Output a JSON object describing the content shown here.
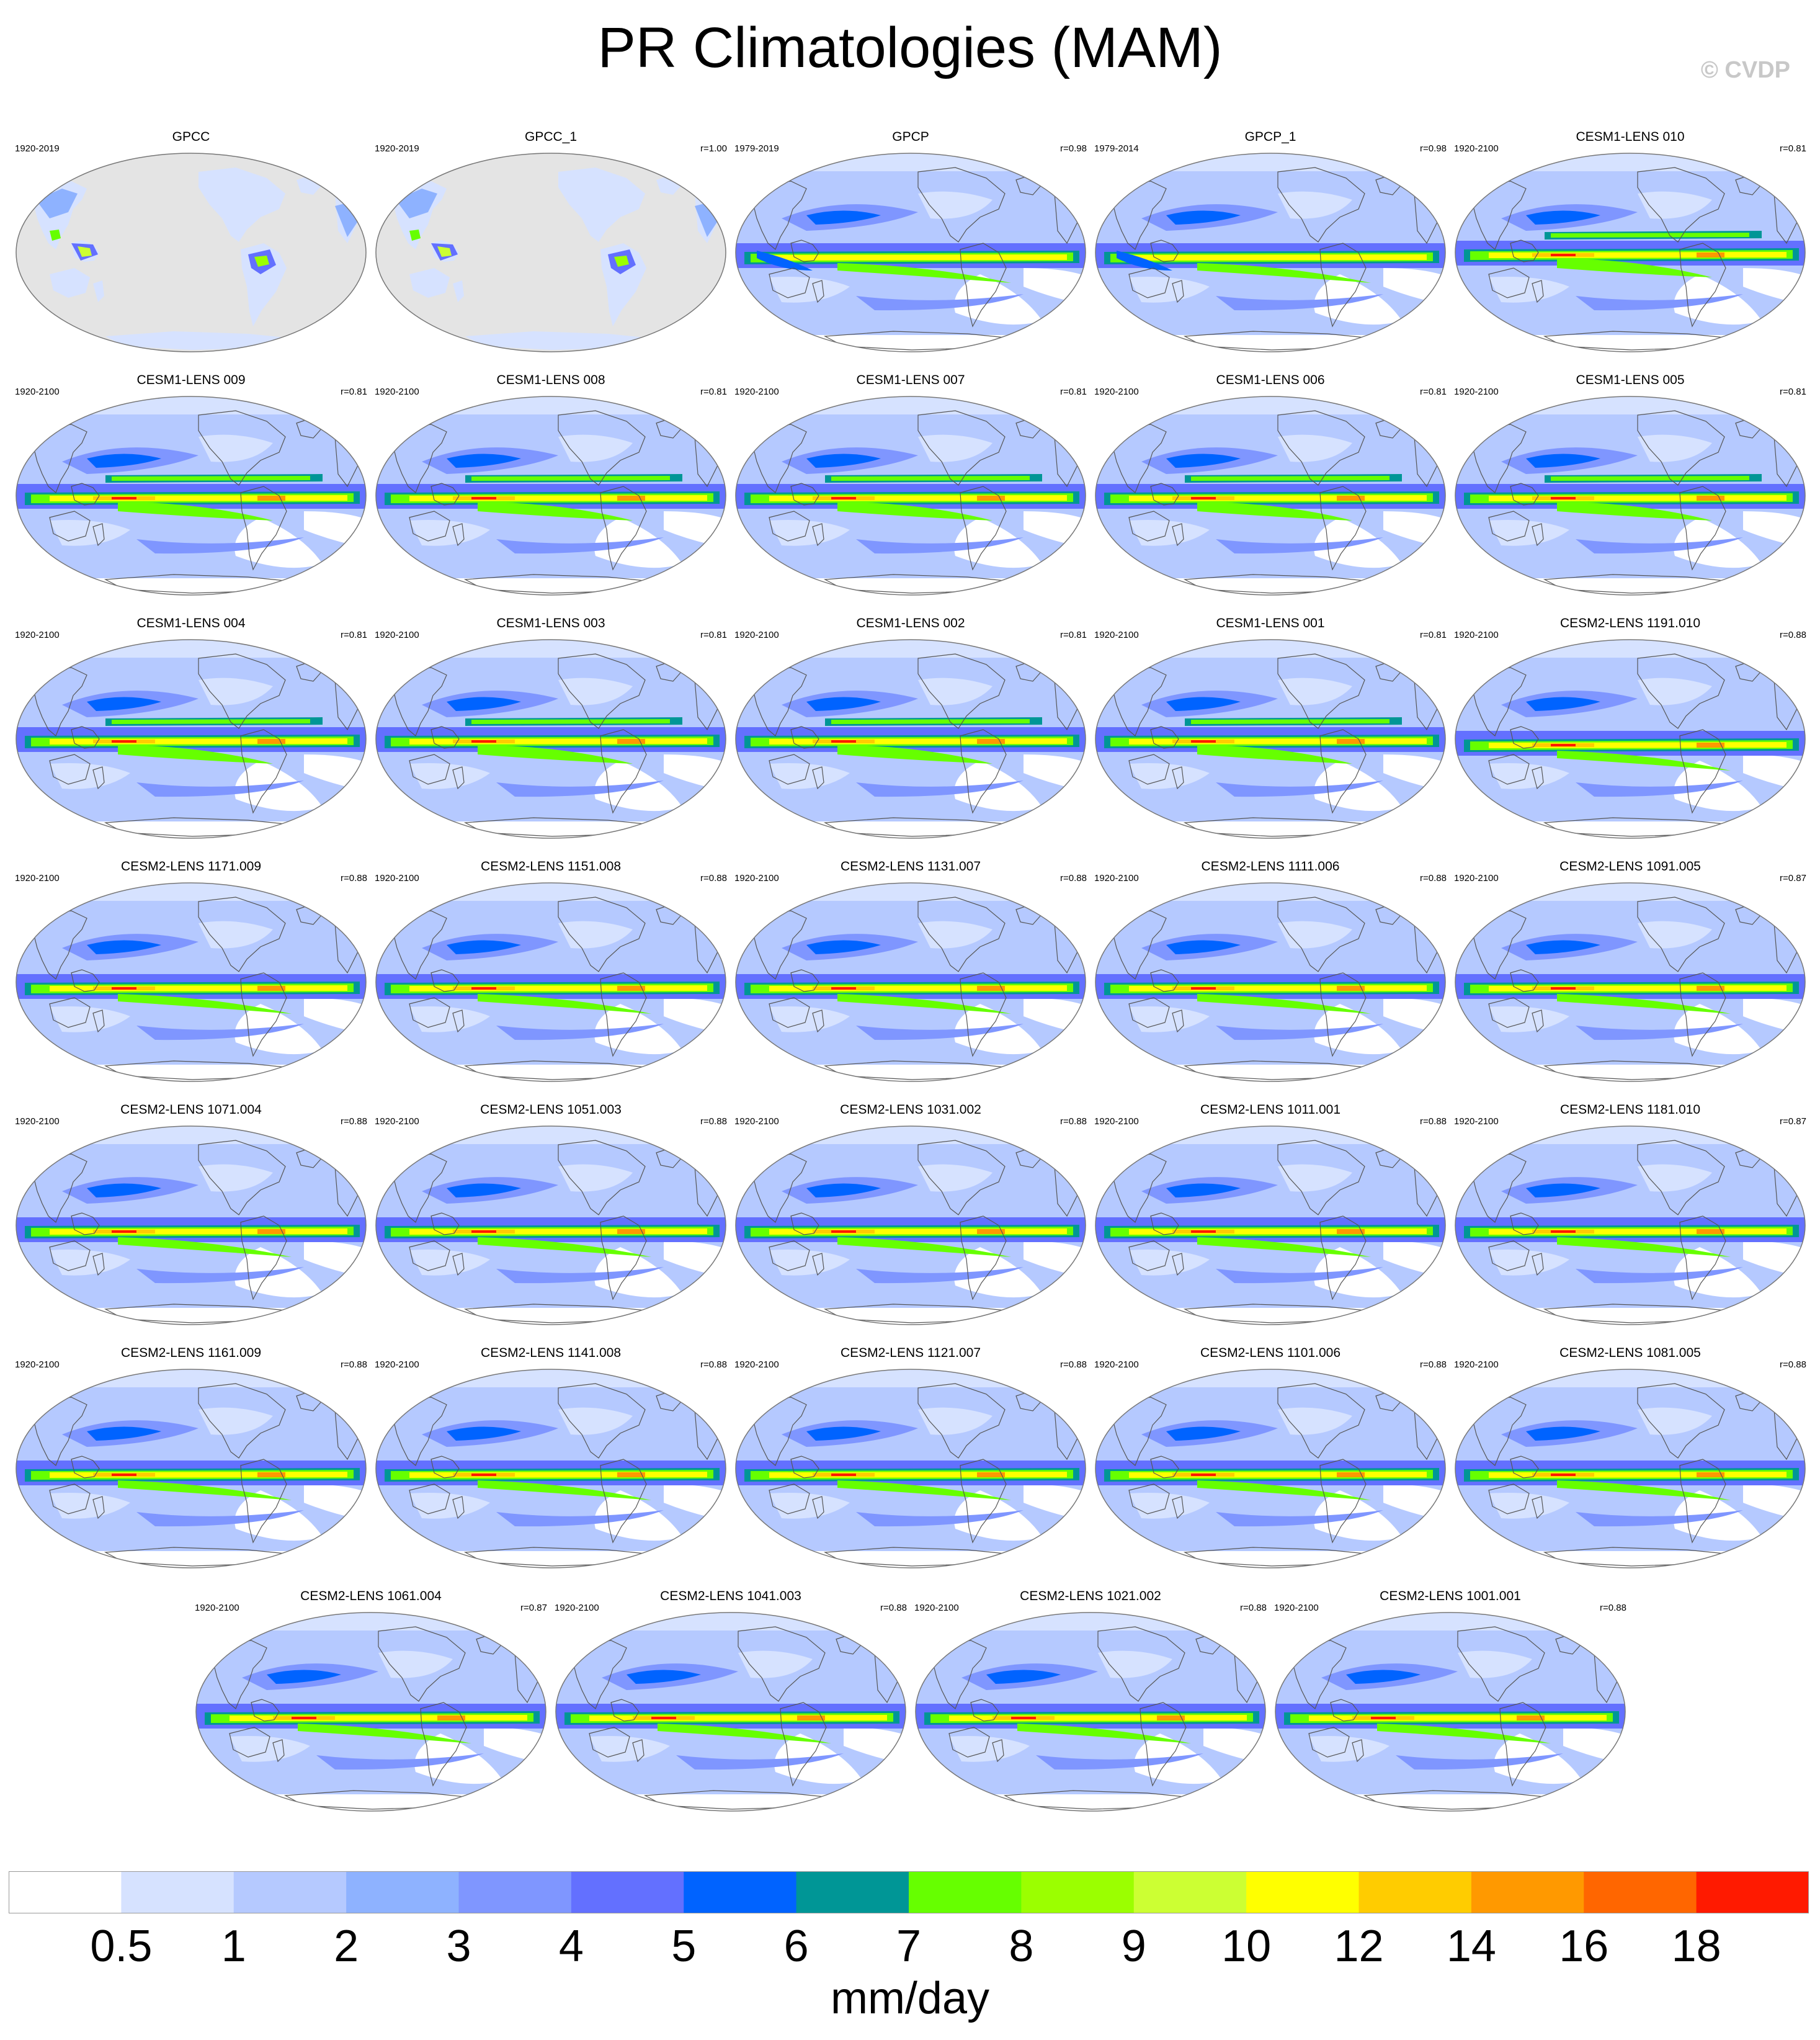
{
  "title": "PR Climatologies (MAM)",
  "copyright": "© CVDP",
  "colorbar": {
    "levels": [
      "0.5",
      "1",
      "2",
      "3",
      "4",
      "5",
      "6",
      "7",
      "8",
      "9",
      "10",
      "12",
      "14",
      "16",
      "18"
    ],
    "colors": [
      "#ffffff",
      "#d6e2ff",
      "#b5c9ff",
      "#8eb2ff",
      "#7f96ff",
      "#6370ff",
      "#0063ff",
      "#009696",
      "#66ff00",
      "#9bff00",
      "#ccff33",
      "#ffff00",
      "#ffcc00",
      "#ff9900",
      "#ff6600",
      "#ff1a00"
    ],
    "units": "mm/day"
  },
  "chart_data": {
    "type": "heatmap",
    "title": "PR Climatologies (MAM)",
    "variable": "PR",
    "season": "MAM",
    "units": "mm/day",
    "projection": "Robinson-like global map, Pacific-centred",
    "contour_levels": [
      0.5,
      1,
      2,
      3,
      4,
      5,
      6,
      7,
      8,
      9,
      10,
      12,
      14,
      16,
      18
    ],
    "panels": [
      {
        "name": "GPCC",
        "years": "1920-2019",
        "r": "",
        "kind": "land"
      },
      {
        "name": "GPCC_1",
        "years": "1920-2019",
        "r": "r=1.00",
        "kind": "land"
      },
      {
        "name": "GPCP",
        "years": "1979-2019",
        "r": "r=0.98",
        "kind": "obs"
      },
      {
        "name": "GPCP_1",
        "years": "1979-2014",
        "r": "r=0.98",
        "kind": "obs"
      },
      {
        "name": "CESM1-LENS 010",
        "years": "1920-2100",
        "r": "r=0.81",
        "kind": "cesm1"
      },
      {
        "name": "CESM1-LENS 009",
        "years": "1920-2100",
        "r": "r=0.81",
        "kind": "cesm1"
      },
      {
        "name": "CESM1-LENS 008",
        "years": "1920-2100",
        "r": "r=0.81",
        "kind": "cesm1"
      },
      {
        "name": "CESM1-LENS 007",
        "years": "1920-2100",
        "r": "r=0.81",
        "kind": "cesm1"
      },
      {
        "name": "CESM1-LENS 006",
        "years": "1920-2100",
        "r": "r=0.81",
        "kind": "cesm1"
      },
      {
        "name": "CESM1-LENS 005",
        "years": "1920-2100",
        "r": "r=0.81",
        "kind": "cesm1"
      },
      {
        "name": "CESM1-LENS 004",
        "years": "1920-2100",
        "r": "r=0.81",
        "kind": "cesm1"
      },
      {
        "name": "CESM1-LENS 003",
        "years": "1920-2100",
        "r": "r=0.81",
        "kind": "cesm1"
      },
      {
        "name": "CESM1-LENS 002",
        "years": "1920-2100",
        "r": "r=0.81",
        "kind": "cesm1"
      },
      {
        "name": "CESM1-LENS 001",
        "years": "1920-2100",
        "r": "r=0.81",
        "kind": "cesm1"
      },
      {
        "name": "CESM2-LENS 1191.010",
        "years": "1920-2100",
        "r": "r=0.88",
        "kind": "cesm2"
      },
      {
        "name": "CESM2-LENS 1171.009",
        "years": "1920-2100",
        "r": "r=0.88",
        "kind": "cesm2"
      },
      {
        "name": "CESM2-LENS 1151.008",
        "years": "1920-2100",
        "r": "r=0.88",
        "kind": "cesm2"
      },
      {
        "name": "CESM2-LENS 1131.007",
        "years": "1920-2100",
        "r": "r=0.88",
        "kind": "cesm2"
      },
      {
        "name": "CESM2-LENS 1111.006",
        "years": "1920-2100",
        "r": "r=0.88",
        "kind": "cesm2"
      },
      {
        "name": "CESM2-LENS 1091.005",
        "years": "1920-2100",
        "r": "r=0.87",
        "kind": "cesm2"
      },
      {
        "name": "CESM2-LENS 1071.004",
        "years": "1920-2100",
        "r": "r=0.88",
        "kind": "cesm2"
      },
      {
        "name": "CESM2-LENS 1051.003",
        "years": "1920-2100",
        "r": "r=0.88",
        "kind": "cesm2"
      },
      {
        "name": "CESM2-LENS 1031.002",
        "years": "1920-2100",
        "r": "r=0.88",
        "kind": "cesm2"
      },
      {
        "name": "CESM2-LENS 1011.001",
        "years": "1920-2100",
        "r": "r=0.88",
        "kind": "cesm2"
      },
      {
        "name": "CESM2-LENS 1181.010",
        "years": "1920-2100",
        "r": "r=0.87",
        "kind": "cesm2"
      },
      {
        "name": "CESM2-LENS 1161.009",
        "years": "1920-2100",
        "r": "r=0.88",
        "kind": "cesm2"
      },
      {
        "name": "CESM2-LENS 1141.008",
        "years": "1920-2100",
        "r": "r=0.88",
        "kind": "cesm2"
      },
      {
        "name": "CESM2-LENS 1121.007",
        "years": "1920-2100",
        "r": "r=0.88",
        "kind": "cesm2"
      },
      {
        "name": "CESM2-LENS 1101.006",
        "years": "1920-2100",
        "r": "r=0.88",
        "kind": "cesm2"
      },
      {
        "name": "CESM2-LENS 1081.005",
        "years": "1920-2100",
        "r": "r=0.88",
        "kind": "cesm2"
      },
      {
        "name": "CESM2-LENS 1061.004",
        "years": "1920-2100",
        "r": "r=0.87",
        "kind": "cesm2"
      },
      {
        "name": "CESM2-LENS 1041.003",
        "years": "1920-2100",
        "r": "r=0.88",
        "kind": "cesm2"
      },
      {
        "name": "CESM2-LENS 1021.002",
        "years": "1920-2100",
        "r": "r=0.88",
        "kind": "cesm2"
      },
      {
        "name": "CESM2-LENS 1001.001",
        "years": "1920-2100",
        "r": "r=0.88",
        "kind": "cesm2"
      }
    ]
  }
}
